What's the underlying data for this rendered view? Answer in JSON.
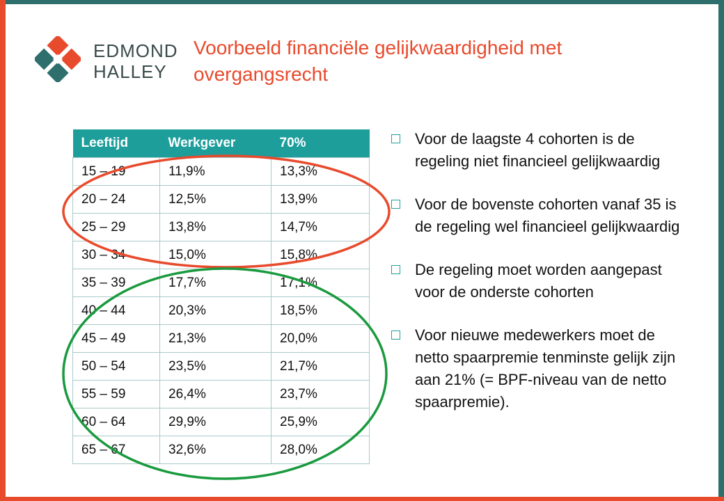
{
  "brand": {
    "line1": "EDMOND",
    "line2": "HALLEY"
  },
  "colors": {
    "accent": "#e84a2c",
    "teal": "#2e6e6c",
    "table_header": "#1e9e9b",
    "ellipse_red": "#e84a2c",
    "ellipse_green": "#1a9a3e"
  },
  "title": "Voorbeeld financiële gelijkwaardigheid met overgangsrecht",
  "table": {
    "headers": [
      "Leeftijd",
      "Werkgever",
      "70%"
    ],
    "rows": [
      [
        "15 – 19",
        "11,9%",
        "13,3%"
      ],
      [
        "20 – 24",
        "12,5%",
        "13,9%"
      ],
      [
        "25 – 29",
        "13,8%",
        "14,7%"
      ],
      [
        "30 – 34",
        "15,0%",
        "15,8%"
      ],
      [
        "35 – 39",
        "17,7%",
        "17,1%"
      ],
      [
        "40 – 44",
        "20,3%",
        "18,5%"
      ],
      [
        "45 – 49",
        "21,3%",
        "20,0%"
      ],
      [
        "50 – 54",
        "23,5%",
        "21,7%"
      ],
      [
        "55 – 59",
        "26,4%",
        "23,7%"
      ],
      [
        "60 – 64",
        "29,9%",
        "25,9%"
      ],
      [
        "65 – 67",
        "32,6%",
        "28,0%"
      ]
    ]
  },
  "bullets": [
    "Voor de laagste 4 cohorten is de regeling niet financieel gelijkwaardig",
    "Voor de bovenste cohorten vanaf 35 is de regeling wel financieel gelijkwaardig",
    "De regeling moet worden aangepast voor de onderste cohorten",
    "Voor nieuwe medewerkers moet de netto spaarpremie tenminste gelijk zijn aan 21% (= BPF-niveau van de netto spaarpremie)."
  ]
}
